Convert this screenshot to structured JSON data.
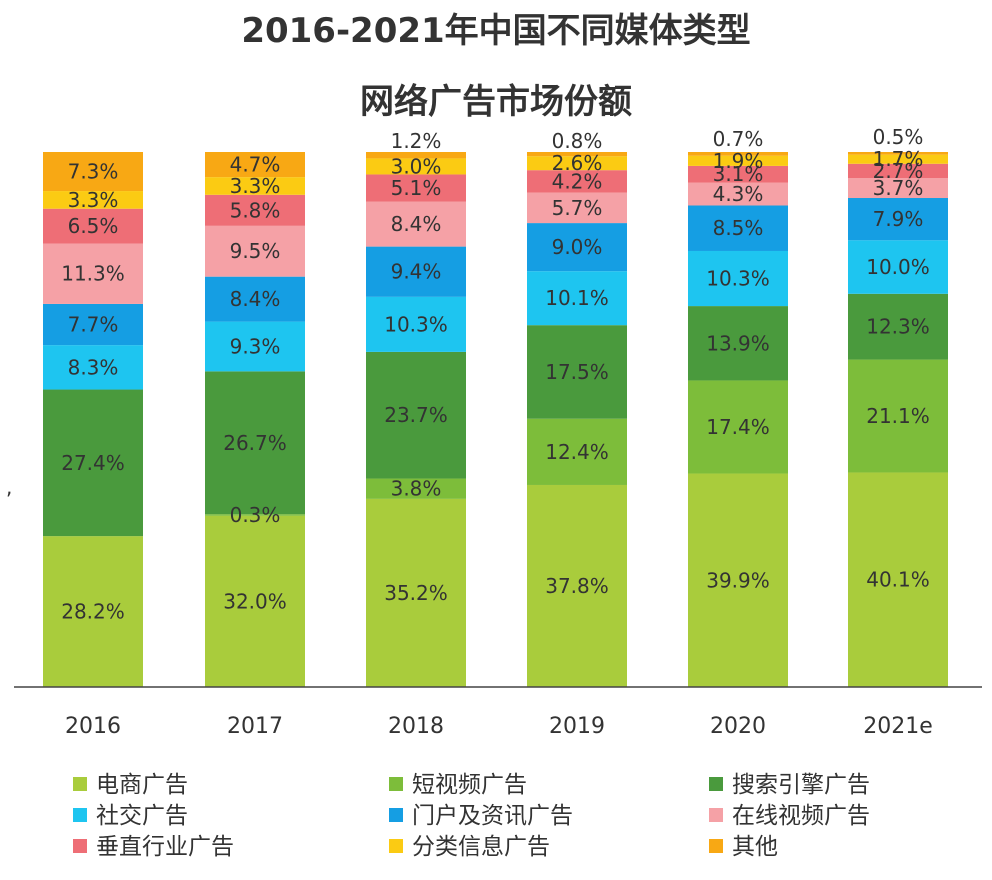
{
  "chart_data": {
    "type": "bar",
    "stacked": true,
    "title_lines": [
      "2016-2021年中国不同媒体类型",
      "网络广告市场份额"
    ],
    "categories": [
      "2016",
      "2017",
      "2018",
      "2019",
      "2020",
      "2021e"
    ],
    "xlabel": "",
    "ylabel": "",
    "ylim": [
      0,
      100
    ],
    "grid": false,
    "legend_position": "bottom",
    "series": [
      {
        "name": "电商广告",
        "color": "#a9cc3c",
        "values": [
          28.2,
          32.0,
          35.2,
          37.8,
          39.9,
          40.1
        ],
        "labels": [
          "28.2%",
          "32.0%",
          "35.2%",
          "37.8%",
          "39.9%",
          "40.1%"
        ]
      },
      {
        "name": "短视频广告",
        "color": "#7dbd3a",
        "values": [
          0,
          0.3,
          3.8,
          12.4,
          17.4,
          21.1
        ],
        "labels": [
          "",
          "0.3%",
          "3.8%",
          "12.4%",
          "17.4%",
          "21.1%"
        ]
      },
      {
        "name": "搜索引擎广告",
        "color": "#4a9a3d",
        "values": [
          27.4,
          26.7,
          23.7,
          17.5,
          13.9,
          12.3
        ],
        "labels": [
          "27.4%",
          "26.7%",
          "23.7%",
          "17.5%",
          "13.9%",
          "12.3%"
        ]
      },
      {
        "name": "社交广告",
        "color": "#1ec5f0",
        "values": [
          8.3,
          9.3,
          10.3,
          10.1,
          10.3,
          10.0
        ],
        "labels": [
          "8.3%",
          "9.3%",
          "10.3%",
          "10.1%",
          "10.3%",
          "10.0%"
        ]
      },
      {
        "name": "门户及资讯广告",
        "color": "#159ee3",
        "values": [
          7.7,
          8.4,
          9.4,
          9.0,
          8.5,
          7.9
        ],
        "labels": [
          "7.7%",
          "8.4%",
          "9.4%",
          "9.0%",
          "8.5%",
          "7.9%"
        ]
      },
      {
        "name": "在线视频广告",
        "color": "#f5a1a6",
        "values": [
          11.3,
          9.5,
          8.4,
          5.7,
          4.3,
          3.7
        ],
        "labels": [
          "11.3%",
          "9.5%",
          "8.4%",
          "5.7%",
          "4.3%",
          "3.7%"
        ]
      },
      {
        "name": "垂直行业广告",
        "color": "#ee6e76",
        "values": [
          6.5,
          5.8,
          5.1,
          4.2,
          3.1,
          2.7
        ],
        "labels": [
          "6.5%",
          "5.8%",
          "5.1%",
          "4.2%",
          "3.1%",
          "2.7%"
        ]
      },
      {
        "name": "分类信息广告",
        "color": "#fbcb13",
        "values": [
          3.3,
          3.3,
          3.0,
          2.6,
          1.9,
          1.7
        ],
        "labels": [
          "3.3%",
          "3.3%",
          "3.0%",
          "2.6%",
          "1.9%",
          "1.7%"
        ]
      },
      {
        "name": "其他",
        "color": "#f8a814",
        "values": [
          7.3,
          4.7,
          1.2,
          0.8,
          0.7,
          0.5
        ],
        "labels": [
          "7.3%",
          "4.7%",
          "1.2%",
          "0.8%",
          "0.7%",
          "0.5%"
        ]
      }
    ],
    "stray_mark": ","
  }
}
